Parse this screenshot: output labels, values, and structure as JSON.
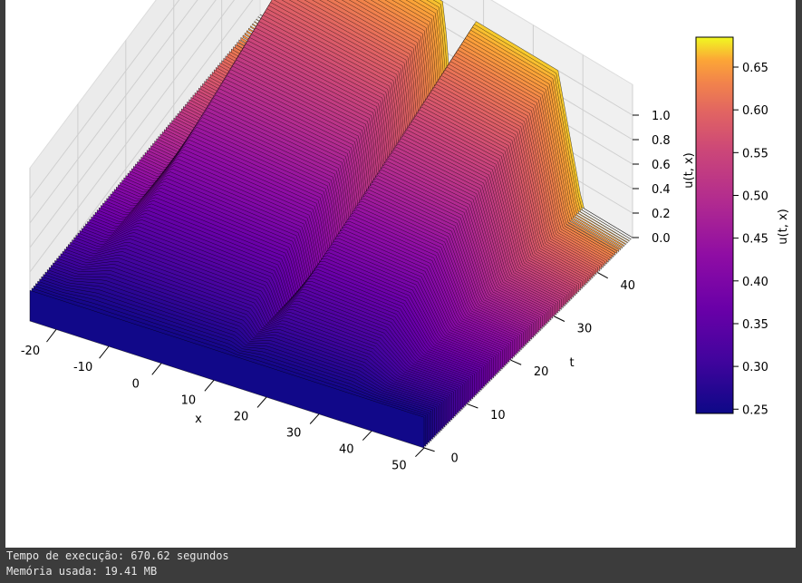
{
  "chart_data": {
    "type": "surface3d",
    "title": "",
    "x_axis": {
      "label": "x",
      "ticks": [
        "-20",
        "-10",
        "0",
        "10",
        "20",
        "30",
        "40",
        "50"
      ],
      "range": [
        -25,
        50
      ]
    },
    "t_axis": {
      "label": "t",
      "ticks": [
        "0",
        "10",
        "20",
        "30",
        "40"
      ],
      "range": [
        0,
        48
      ]
    },
    "z_axis": {
      "label": "u(t, x)",
      "ticks": [
        "0.0",
        "0.2",
        "0.4",
        "0.6",
        "0.8",
        "1.0"
      ],
      "range": [
        0,
        1
      ]
    },
    "colorbar": {
      "label": "u(t, x)",
      "colormap": "plasma",
      "range": [
        0.245,
        0.685
      ],
      "ticks": [
        "0.25",
        "0.30",
        "0.35",
        "0.40",
        "0.45",
        "0.50",
        "0.55",
        "0.60",
        "0.65"
      ]
    },
    "series": [
      {
        "description_free": true,
        "x": [
          -25,
          -20,
          -14,
          -10,
          -5,
          0,
          5,
          9,
          12,
          14,
          18,
          22,
          26,
          30,
          35,
          40,
          45,
          50
        ],
        "u_t0": [
          0.25,
          0.25,
          0.25,
          0.25,
          0.25,
          0.25,
          0.25,
          0.25,
          0.25,
          0.25,
          0.25,
          0.25,
          0.25,
          0.25,
          0.25,
          0.25,
          0.25,
          0.25
        ],
        "u_t48": [
          0.0,
          0.0,
          1.0,
          1.0,
          1.0,
          1.0,
          1.0,
          1.0,
          1.0,
          0.0,
          1.0,
          1.0,
          1.0,
          1.0,
          1.0,
          0.0,
          0.0,
          0.0
        ]
      }
    ],
    "grid": true
  },
  "console": {
    "line1": "Tempo de execução: 670.62 segundos",
    "line2": "Memória usada: 19.41 MB"
  }
}
